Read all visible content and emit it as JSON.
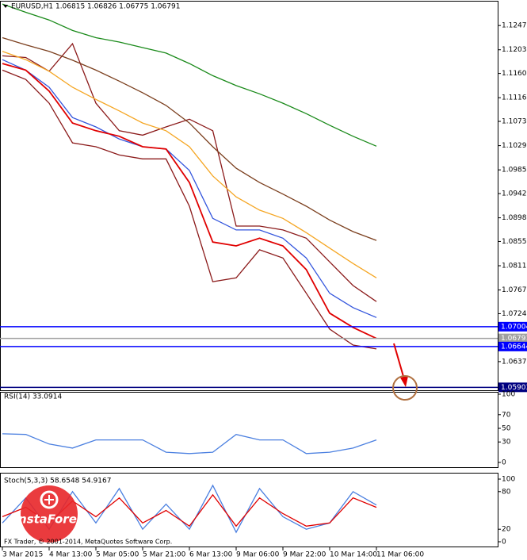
{
  "chart_data": [
    {
      "type": "line",
      "title": "EURUSD,H1  1.06815 1.06826 1.06775 1.06791",
      "categories": [
        "3 Mar 2015",
        null,
        "4 Mar 13:00",
        null,
        "5 Mar 05:00",
        null,
        "5 Mar 21:00",
        null,
        "6 Mar 13:00",
        null,
        "9 Mar 06:00",
        null,
        "9 Mar 22:00",
        null,
        "10 Mar 14:00",
        null,
        "11 Mar 06:00"
      ],
      "ylim": [
        1.0585,
        1.1289
      ],
      "yticks": [
        {
          "value": 1.1247,
          "label": "1.12470"
        },
        {
          "value": 1.1203,
          "label": "1.12030"
        },
        {
          "value": 1.116,
          "label": "1.11600"
        },
        {
          "value": 1.1116,
          "label": "1.11160"
        },
        {
          "value": 1.1073,
          "label": "1.10730"
        },
        {
          "value": 1.1029,
          "label": "1.10290"
        },
        {
          "value": 1.0985,
          "label": "1.09850"
        },
        {
          "value": 1.0942,
          "label": "1.09420"
        },
        {
          "value": 1.0898,
          "label": "1.08980"
        },
        {
          "value": 1.0855,
          "label": "1.08550"
        },
        {
          "value": 1.0811,
          "label": "1.08110"
        },
        {
          "value": 1.0767,
          "label": "1.07670"
        },
        {
          "value": 1.0724,
          "label": "1.07240"
        },
        {
          "value": 1.0637,
          "label": "1.06370"
        }
      ],
      "levels": [
        {
          "value": 1.07004,
          "color": "#0000ff"
        },
        {
          "value": 1.06791,
          "color": "#a0a0a0"
        },
        {
          "value": 1.06644,
          "color": "#0000ff"
        },
        {
          "value": 1.05903,
          "color": "#000080"
        }
      ],
      "series": [
        {
          "color": "#8b1a1a",
          "values": [
            1.1192,
            1.1189,
            1.1164,
            1.1214,
            1.1106,
            1.1056,
            1.1048,
            1.1063,
            1.1077,
            1.1056,
            1.0883,
            1.0883,
            1.0876,
            1.0861,
            1.0818,
            1.0775,
            1.0746
          ]
        },
        {
          "color": "#8b1a1a",
          "values": [
            1.1166,
            1.1149,
            1.1106,
            1.1034,
            1.1027,
            1.1012,
            1.1005,
            1.1005,
            1.0919,
            1.0782,
            1.0789,
            1.084,
            1.0825,
            1.0761,
            1.0696,
            1.0667,
            1.066
          ]
        },
        {
          "color": "#1a8a1a",
          "values": [
            1.1286,
            1.1271,
            1.1257,
            1.1238,
            1.1225,
            1.1217,
            1.1207,
            1.1197,
            1.1178,
            1.1156,
            1.1138,
            1.1123,
            1.1106,
            1.1087,
            1.1066,
            1.1046,
            1.1028
          ]
        },
        {
          "color": "#7b3f1e",
          "values": [
            1.1225,
            1.1212,
            1.12,
            1.1184,
            1.1166,
            1.1146,
            1.1125,
            1.1102,
            1.107,
            1.1027,
            1.0988,
            1.0962,
            1.0941,
            1.0919,
            1.0894,
            1.0873,
            1.0857
          ]
        },
        {
          "color": "#f5a623",
          "values": [
            1.12,
            1.1185,
            1.1164,
            1.1135,
            1.1113,
            1.1092,
            1.107,
            1.1056,
            1.1027,
            1.0974,
            1.0936,
            1.0912,
            1.0897,
            1.0871,
            1.0843,
            1.0815,
            1.0789
          ]
        },
        {
          "color": "#3355dd",
          "values": [
            1.1185,
            1.1166,
            1.1135,
            1.108,
            1.1063,
            1.1041,
            1.1027,
            1.1023,
            1.0984,
            1.0897,
            1.0876,
            1.0876,
            1.0861,
            1.0825,
            1.0761,
            1.0735,
            1.0717
          ]
        },
        {
          "color": "#e00000",
          "values": [
            1.1178,
            1.1166,
            1.1128,
            1.107,
            1.1056,
            1.1046,
            1.1027,
            1.1023,
            1.0962,
            1.0854,
            1.0847,
            1.0861,
            1.0847,
            1.0804,
            1.0725,
            1.0699,
            1.0679
          ]
        }
      ]
    },
    {
      "type": "line",
      "title": "RSI(14) 33.0914",
      "ylim": [
        0,
        100
      ],
      "yticks": [
        100,
        70,
        50,
        30,
        0
      ],
      "series": [
        {
          "color": "#4a7fe0",
          "values": [
            42,
            41,
            27,
            21,
            33,
            33,
            33,
            15,
            13,
            15,
            41,
            33,
            33,
            13,
            15,
            21,
            33
          ]
        }
      ]
    },
    {
      "type": "line",
      "title": "Stoch(5,3,3) 58.6548 54.9167",
      "ylim": [
        0,
        100
      ],
      "yticks": [
        100,
        80,
        20,
        0
      ],
      "footer": "FX Trader, © 2001-2014, MetaQuotes Software Corp.",
      "watermark": "InstaForex",
      "series": [
        {
          "color": "#4a7fe0",
          "values": [
            30,
            70,
            20,
            80,
            30,
            85,
            20,
            60,
            20,
            90,
            15,
            85,
            40,
            20,
            30,
            80,
            58.6548
          ]
        },
        {
          "color": "#e00000",
          "values": [
            40,
            55,
            30,
            65,
            40,
            70,
            30,
            50,
            25,
            75,
            25,
            70,
            45,
            25,
            30,
            70,
            54.9167
          ]
        }
      ]
    }
  ]
}
